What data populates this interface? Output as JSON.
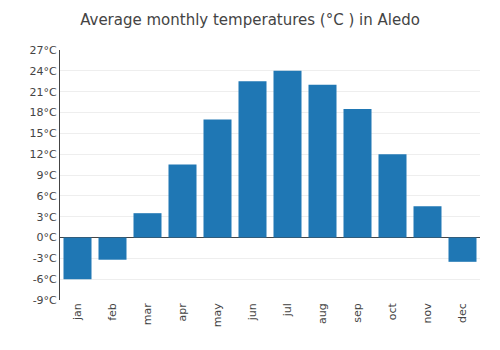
{
  "chart_data": {
    "type": "bar",
    "title": "Average monthly temperatures (°C ) in Aledo",
    "categories": [
      "jan",
      "feb",
      "mar",
      "apr",
      "may",
      "jun",
      "jul",
      "aug",
      "sep",
      "oct",
      "nov",
      "dec"
    ],
    "values": [
      -6.0,
      -3.2,
      3.5,
      10.5,
      17.0,
      22.5,
      24.0,
      22.0,
      18.5,
      12.0,
      4.5,
      -3.5
    ],
    "ylim": [
      -9,
      27
    ],
    "yticks": [
      {
        "value": -9,
        "label": "-9°C"
      },
      {
        "value": -6,
        "label": "-6°C"
      },
      {
        "value": -3,
        "label": "-3°C"
      },
      {
        "value": 0,
        "label": "0°C"
      },
      {
        "value": 3,
        "label": "3°C"
      },
      {
        "value": 6,
        "label": "6°C"
      },
      {
        "value": 9,
        "label": "9°C"
      },
      {
        "value": 12,
        "label": "12°C"
      },
      {
        "value": 15,
        "label": "15°C"
      },
      {
        "value": 18,
        "label": "18°C"
      },
      {
        "value": 21,
        "label": "21°C"
      },
      {
        "value": 24,
        "label": "24°C"
      },
      {
        "value": 27,
        "label": "27°C"
      }
    ],
    "grid": true
  }
}
